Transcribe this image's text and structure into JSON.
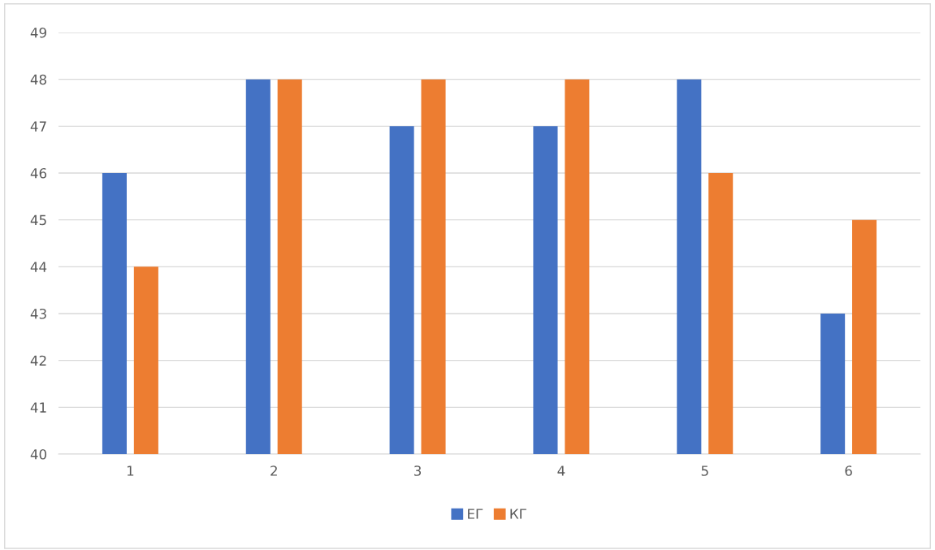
{
  "chart_data": {
    "type": "bar",
    "categories": [
      "1",
      "2",
      "3",
      "4",
      "5",
      "6"
    ],
    "series": [
      {
        "name": "ЕГ",
        "color": "#4472c4",
        "values": [
          46,
          48,
          47,
          47,
          48,
          43
        ]
      },
      {
        "name": "КГ",
        "color": "#ed7d31",
        "values": [
          44,
          48,
          48,
          48,
          46,
          45
        ]
      }
    ],
    "ylim": [
      40,
      49
    ],
    "yticks": [
      40,
      41,
      42,
      43,
      44,
      45,
      46,
      47,
      48,
      49
    ],
    "grid": "y",
    "legend": "bottom"
  }
}
